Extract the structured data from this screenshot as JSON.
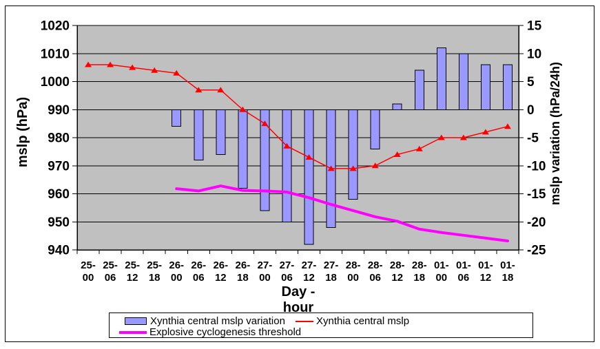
{
  "chart_data": {
    "type": "combo-bar-line",
    "categories": [
      "25-00",
      "25-06",
      "25-12",
      "25-18",
      "26-00",
      "26-06",
      "26-12",
      "26-18",
      "27-00",
      "27-06",
      "27-12",
      "27-18",
      "28-00",
      "28-06",
      "28-12",
      "28-18",
      "01-00",
      "01-06",
      "01-12",
      "01-18"
    ],
    "series": [
      {
        "name": "Xynthia central mslp variation",
        "type": "bar",
        "axis": "right",
        "color": "#9999ff",
        "values": [
          null,
          null,
          null,
          null,
          -3,
          -9,
          -8,
          -14,
          -18,
          -20,
          -24,
          -21,
          -16,
          -7,
          1,
          7,
          11,
          10,
          8,
          8
        ]
      },
      {
        "name": "Xynthia central mslp",
        "type": "line",
        "axis": "left",
        "color": "#ff0000",
        "marker": "triangle",
        "values": [
          1006,
          1006,
          1005,
          1004,
          1003,
          997,
          997,
          990,
          985,
          977,
          973,
          969,
          969,
          970,
          974,
          976,
          980,
          980,
          982,
          984
        ]
      },
      {
        "name": "Explosive cyclogenesis threshold",
        "type": "line",
        "axis": "right",
        "color": "#ff00ff",
        "values": [
          null,
          null,
          null,
          null,
          -14.1,
          -14.5,
          -13.6,
          -14.4,
          -14.5,
          -14.7,
          -15.7,
          -16.9,
          -18,
          -19.1,
          -19.9,
          -21.3,
          -21.9,
          -22.4,
          -22.9,
          -23.4
        ]
      }
    ],
    "left_axis": {
      "title": "mslp (hPa)",
      "min": 940,
      "max": 1020,
      "ticks": [
        1020,
        1010,
        1000,
        990,
        980,
        970,
        960,
        950,
        940
      ]
    },
    "right_axis": {
      "title": "mslp variation (hPa/24h)",
      "min": -25,
      "max": 15,
      "ticks": [
        15,
        10,
        5,
        0,
        -5,
        -10,
        -15,
        -20,
        -25
      ]
    },
    "x_axis": {
      "title_lines": [
        "Day -",
        "hour"
      ]
    },
    "plot_bg": "#c0c0c0",
    "grid": true,
    "legend_position": "bottom"
  }
}
